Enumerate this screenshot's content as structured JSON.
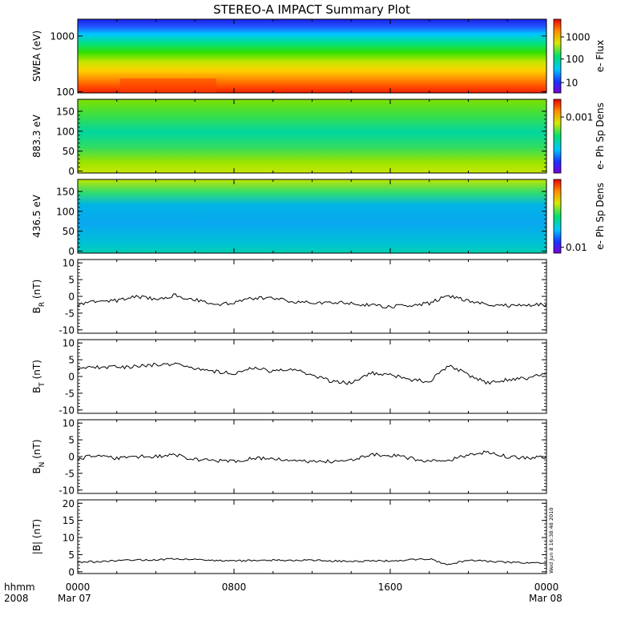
{
  "title": "STEREO-A IMPACT Summary Plot",
  "footer": {
    "time_label": "hhmm",
    "year_label": "2008",
    "date_start": "Mar 07",
    "date_end": "Mar 08",
    "x_ticks": [
      "0000",
      "0800",
      "1600",
      "0000"
    ]
  },
  "timestamp": "Wed Jun 8 16:38:48 2010",
  "chart_data": [
    {
      "type": "heatmap",
      "ylabel": "SWEA (eV)",
      "yscale": "log",
      "ylim": [
        95,
        2000
      ],
      "ytick_labels": [
        "1000",
        "100"
      ],
      "colorbar_label": "e- Flux",
      "colorbar_scale": "log",
      "colorbar_tick_labels": [
        "1000",
        "100",
        "10"
      ]
    },
    {
      "type": "heatmap",
      "ylabel": "883.3 eV",
      "ylim": [
        -5,
        180
      ],
      "ytick_labels": [
        "150",
        "100",
        "50",
        "0"
      ],
      "colorbar_label": "e- Ph Sp Dens",
      "colorbar_tick_labels": [
        "0.001"
      ]
    },
    {
      "type": "heatmap",
      "ylabel": "436.5 eV",
      "ylim": [
        -5,
        180
      ],
      "ytick_labels": [
        "150",
        "100",
        "50",
        "0"
      ],
      "colorbar_label": "e- Ph Sp Dens",
      "colorbar_tick_labels": [
        "0.01"
      ]
    },
    {
      "type": "line",
      "ylabel": "B",
      "ylabel_sub": "R",
      "ylabel_unit": " (nT)",
      "ylim": [
        -11,
        11
      ],
      "ytick_labels": [
        "10",
        "5",
        "0",
        "-5",
        "-10"
      ],
      "x_hours": [
        0,
        1,
        2,
        3,
        4,
        5,
        6,
        7,
        8,
        9,
        10,
        11,
        12,
        13,
        14,
        15,
        16,
        17,
        18,
        19,
        20,
        21,
        22,
        23,
        24
      ],
      "values": [
        -2.5,
        -1.5,
        -1.2,
        0.0,
        -0.8,
        0.3,
        -1.0,
        -2.5,
        -2.0,
        -0.5,
        -0.5,
        -1.5,
        -2.0,
        -1.8,
        -2.0,
        -2.8,
        -3.0,
        -2.8,
        -2.0,
        0.2,
        -1.5,
        -2.5,
        -2.8,
        -2.5,
        -2.5
      ]
    },
    {
      "type": "line",
      "ylabel": "B",
      "ylabel_sub": "T",
      "ylabel_unit": " (nT)",
      "ylim": [
        -11,
        11
      ],
      "ytick_labels": [
        "10",
        "5",
        "0",
        "-5",
        "-10"
      ],
      "x_hours": [
        0,
        1,
        2,
        3,
        4,
        5,
        6,
        7,
        8,
        9,
        10,
        11,
        12,
        13,
        14,
        15,
        16,
        17,
        18,
        19,
        20,
        21,
        22,
        23,
        24
      ],
      "values": [
        2.3,
        2.8,
        2.8,
        3.0,
        3.5,
        3.8,
        2.5,
        1.5,
        1.0,
        2.5,
        1.5,
        2.0,
        0.5,
        -1.5,
        -2.0,
        1.0,
        0.5,
        -1.0,
        -1.5,
        3.5,
        0.5,
        -2.0,
        -1.0,
        -0.5,
        0.8
      ]
    },
    {
      "type": "line",
      "ylabel": "B",
      "ylabel_sub": "N",
      "ylabel_unit": " (nT)",
      "ylim": [
        -11,
        11
      ],
      "ytick_labels": [
        "10",
        "5",
        "0",
        "-5",
        "-10"
      ],
      "x_hours": [
        0,
        1,
        2,
        3,
        4,
        5,
        6,
        7,
        8,
        9,
        10,
        11,
        12,
        13,
        14,
        15,
        16,
        17,
        18,
        19,
        20,
        21,
        22,
        23,
        24
      ],
      "values": [
        -0.8,
        0.5,
        -0.5,
        0.0,
        0.0,
        0.5,
        -1.0,
        -1.2,
        -1.5,
        -0.5,
        -0.5,
        -1.0,
        -1.5,
        -1.5,
        -1.2,
        0.5,
        0.5,
        -0.5,
        -1.5,
        -1.0,
        0.5,
        1.5,
        0.0,
        -0.5,
        0.0
      ]
    },
    {
      "type": "line",
      "ylabel": "|B| (nT)",
      "ylim": [
        -0.5,
        21
      ],
      "ytick_labels": [
        "20",
        "15",
        "10",
        "5",
        "0"
      ],
      "x_hours": [
        0,
        1,
        2,
        3,
        4,
        5,
        6,
        7,
        8,
        9,
        10,
        11,
        12,
        13,
        14,
        15,
        16,
        17,
        18,
        19,
        20,
        21,
        22,
        23,
        24
      ],
      "values": [
        2.8,
        3.0,
        3.3,
        3.5,
        3.5,
        3.8,
        3.6,
        3.3,
        3.2,
        3.3,
        3.4,
        3.3,
        3.4,
        3.2,
        3.0,
        3.2,
        3.2,
        3.5,
        3.8,
        2.0,
        3.5,
        3.0,
        2.8,
        2.6,
        2.5
      ]
    }
  ]
}
